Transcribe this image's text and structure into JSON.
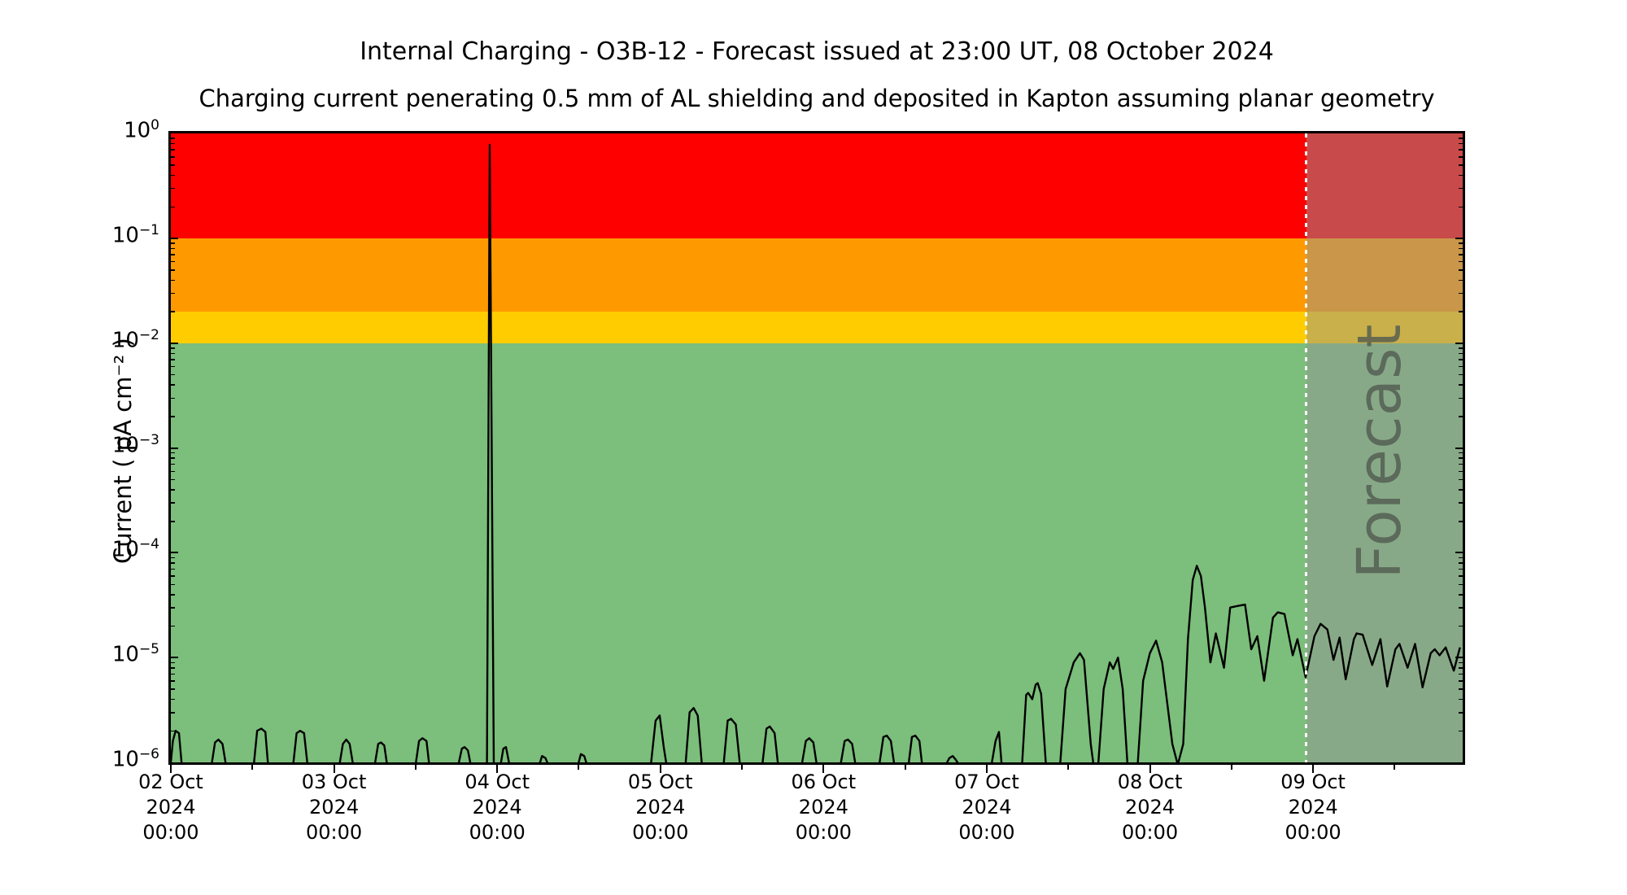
{
  "figure": {
    "title": "Internal Charging - O3B-12 - Forecast issued at 23:00 UT, 08 October 2024",
    "subtitle": "Charging current penerating 0.5 mm of AL shielding and deposited in Kapton assuming planar geometry",
    "y_axis_label": "Current ( pA cm⁻² )",
    "forecast_label": "Forecast"
  },
  "chart_data": {
    "type": "line",
    "title": "Internal Charging - O3B-12 - Forecast issued at 23:00 UT, 08 October 2024",
    "subtitle": "Charging current penerating 0.5 mm of AL shielding and deposited in Kapton assuming planar geometry",
    "xlabel": "",
    "ylabel": "Current ( pA cm⁻² )",
    "x_unit_hours_since": "02 Oct 2024 00:00 UT",
    "xlim": [
      0,
      190
    ],
    "ylim": [
      1e-06,
      1
    ],
    "y_scale": "log",
    "y_ticks": [
      {
        "base": "10",
        "exp": "0"
      },
      {
        "base": "10",
        "exp": "−1"
      },
      {
        "base": "10",
        "exp": "−2"
      },
      {
        "base": "10",
        "exp": "−3"
      },
      {
        "base": "10",
        "exp": "−4"
      },
      {
        "base": "10",
        "exp": "−5"
      },
      {
        "base": "10",
        "exp": "−6"
      }
    ],
    "x_major_ticks": [
      {
        "hours": 0,
        "label": [
          "02 Oct",
          "2024",
          "00:00"
        ]
      },
      {
        "hours": 24,
        "label": [
          "03 Oct",
          "2024",
          "00:00"
        ]
      },
      {
        "hours": 48,
        "label": [
          "04 Oct",
          "2024",
          "00:00"
        ]
      },
      {
        "hours": 72,
        "label": [
          "05 Oct",
          "2024",
          "00:00"
        ]
      },
      {
        "hours": 96,
        "label": [
          "06 Oct",
          "2024",
          "00:00"
        ]
      },
      {
        "hours": 120,
        "label": [
          "07 Oct",
          "2024",
          "00:00"
        ]
      },
      {
        "hours": 144,
        "label": [
          "08 Oct",
          "2024",
          "00:00"
        ]
      },
      {
        "hours": 168,
        "label": [
          "09 Oct",
          "2024",
          "00:00"
        ]
      }
    ],
    "bands": [
      {
        "name": "band-red",
        "from": 0.1,
        "to": 1.0,
        "color": "#ff0000"
      },
      {
        "name": "band-orange",
        "from": 0.02,
        "to": 0.1,
        "color": "#ff9900"
      },
      {
        "name": "band-yellow",
        "from": 0.01,
        "to": 0.02,
        "color": "#ffcc00"
      },
      {
        "name": "band-green",
        "from": 1e-06,
        "to": 0.01,
        "color": "#7cbe7b"
      }
    ],
    "forecast": {
      "start_hours": 167,
      "end_hours": 190,
      "label": "Forecast",
      "overlay_color": "rgba(148,148,148,0.5)",
      "divider_style": "white dotted vertical line",
      "label_color": "rgba(80,90,80,0.8)"
    },
    "series": [
      {
        "name": "charging-current",
        "color": "#000000",
        "points": [
          [
            0,
            1e-06
          ],
          [
            0.3,
            1.6e-06
          ],
          [
            0.7,
            2e-06
          ],
          [
            1.2,
            1.9e-06
          ],
          [
            1.6,
            9.5e-07
          ],
          [
            6.0,
            9.5e-07
          ],
          [
            6.5,
            1.55e-06
          ],
          [
            7.0,
            1.65e-06
          ],
          [
            7.6,
            1.5e-06
          ],
          [
            8.1,
            9.5e-07
          ],
          [
            12.2,
            9.5e-07
          ],
          [
            12.7,
            2e-06
          ],
          [
            13.3,
            2.1e-06
          ],
          [
            13.9,
            1.95e-06
          ],
          [
            14.3,
            9.5e-07
          ],
          [
            18.0,
            9.5e-07
          ],
          [
            18.5,
            1.9e-06
          ],
          [
            19.0,
            2e-06
          ],
          [
            19.6,
            1.9e-06
          ],
          [
            20.1,
            9.5e-07
          ],
          [
            24.8,
            9.5e-07
          ],
          [
            25.3,
            1.5e-06
          ],
          [
            25.8,
            1.65e-06
          ],
          [
            26.3,
            1.5e-06
          ],
          [
            26.8,
            9.5e-07
          ],
          [
            30.0,
            9.5e-07
          ],
          [
            30.5,
            1.5e-06
          ],
          [
            30.9,
            1.55e-06
          ],
          [
            31.4,
            1.45e-06
          ],
          [
            31.8,
            9.5e-07
          ],
          [
            36.0,
            9.5e-07
          ],
          [
            36.5,
            1.6e-06
          ],
          [
            37.0,
            1.7e-06
          ],
          [
            37.6,
            1.6e-06
          ],
          [
            38.0,
            9.5e-07
          ],
          [
            42.3,
            9.5e-07
          ],
          [
            42.8,
            1.35e-06
          ],
          [
            43.2,
            1.4e-06
          ],
          [
            43.7,
            1.3e-06
          ],
          [
            44.1,
            9.5e-07
          ],
          [
            46.5,
            9.5e-07
          ],
          [
            46.9,
            0.78
          ],
          [
            47.5,
            9.5e-07
          ],
          [
            48.5,
            9.5e-07
          ],
          [
            48.9,
            1.35e-06
          ],
          [
            49.3,
            1.4e-06
          ],
          [
            49.8,
            9.5e-07
          ],
          [
            54.2,
            9.5e-07
          ],
          [
            54.6,
            1.15e-06
          ],
          [
            55.1,
            1.1e-06
          ],
          [
            55.5,
            9.5e-07
          ],
          [
            59.9,
            9.5e-07
          ],
          [
            60.3,
            1.2e-06
          ],
          [
            60.8,
            1.15e-06
          ],
          [
            61.2,
            9.5e-07
          ],
          [
            70.6,
            9.5e-07
          ],
          [
            71.3,
            2.5e-06
          ],
          [
            71.9,
            2.8e-06
          ],
          [
            72.5,
            1.4e-06
          ],
          [
            72.9,
            9.5e-07
          ],
          [
            75.7,
            9.5e-07
          ],
          [
            76.3,
            3e-06
          ],
          [
            76.9,
            3.3e-06
          ],
          [
            77.5,
            2.8e-06
          ],
          [
            78.1,
            9.5e-07
          ],
          [
            81.3,
            9.5e-07
          ],
          [
            81.9,
            2.5e-06
          ],
          [
            82.4,
            2.6e-06
          ],
          [
            83.1,
            2.3e-06
          ],
          [
            83.7,
            9.5e-07
          ],
          [
            87.0,
            9.5e-07
          ],
          [
            87.6,
            2.1e-06
          ],
          [
            88.1,
            2.2e-06
          ],
          [
            88.8,
            1.9e-06
          ],
          [
            89.3,
            9.5e-07
          ],
          [
            92.8,
            9.5e-07
          ],
          [
            93.4,
            1.6e-06
          ],
          [
            93.9,
            1.7e-06
          ],
          [
            94.5,
            1.55e-06
          ],
          [
            95.0,
            9.5e-07
          ],
          [
            98.5,
            9.5e-07
          ],
          [
            99.1,
            1.6e-06
          ],
          [
            99.6,
            1.65e-06
          ],
          [
            100.2,
            1.5e-06
          ],
          [
            100.7,
            9.5e-07
          ],
          [
            104.2,
            9.5e-07
          ],
          [
            104.8,
            1.75e-06
          ],
          [
            105.3,
            1.8e-06
          ],
          [
            105.9,
            1.6e-06
          ],
          [
            106.4,
            9.5e-07
          ],
          [
            108.5,
            9.5e-07
          ],
          [
            109.0,
            1.75e-06
          ],
          [
            109.5,
            1.8e-06
          ],
          [
            110.1,
            1.6e-06
          ],
          [
            110.5,
            9.5e-07
          ],
          [
            114.0,
            9.5e-07
          ],
          [
            114.5,
            1.1e-06
          ],
          [
            115.0,
            1.15e-06
          ],
          [
            115.5,
            1.05e-06
          ],
          [
            115.9,
            9.5e-07
          ],
          [
            120.7,
            9.5e-07
          ],
          [
            121.3,
            1.6e-06
          ],
          [
            121.8,
            1.95e-06
          ],
          [
            122.2,
            9.5e-07
          ],
          [
            125.2,
            9.5e-07
          ],
          [
            125.8,
            4.4e-06
          ],
          [
            126.1,
            4.6e-06
          ],
          [
            126.7,
            4e-06
          ],
          [
            127.2,
            5.5e-06
          ],
          [
            127.5,
            5.7e-06
          ],
          [
            128.0,
            4.5e-06
          ],
          [
            128.7,
            9.5e-07
          ],
          [
            130.8,
            9.5e-07
          ],
          [
            131.6,
            5e-06
          ],
          [
            132.8,
            9e-06
          ],
          [
            133.7,
            1.1e-05
          ],
          [
            134.3,
            9.5e-06
          ],
          [
            135.3,
            1.5e-06
          ],
          [
            135.7,
            9.5e-07
          ],
          [
            136.4,
            9.5e-07
          ],
          [
            137.2,
            5e-06
          ],
          [
            138.1,
            9e-06
          ],
          [
            138.6,
            7.8e-06
          ],
          [
            139.3,
            1e-05
          ],
          [
            140.0,
            5e-06
          ],
          [
            140.7,
            9.5e-07
          ],
          [
            142.2,
            9.5e-07
          ],
          [
            143.0,
            6e-06
          ],
          [
            144.0,
            1.1e-05
          ],
          [
            144.9,
            1.45e-05
          ],
          [
            145.8,
            9e-06
          ],
          [
            147.3,
            1.5e-06
          ],
          [
            148.1,
            9.5e-07
          ],
          [
            148.9,
            1.5e-06
          ],
          [
            149.6,
            1.5e-05
          ],
          [
            150.3,
            5.5e-05
          ],
          [
            150.9,
            7.5e-05
          ],
          [
            151.5,
            6e-05
          ],
          [
            152.1,
            3e-05
          ],
          [
            152.9,
            9e-06
          ],
          [
            153.7,
            1.7e-05
          ],
          [
            154.9,
            8e-06
          ],
          [
            155.8,
            3e-05
          ],
          [
            156.8,
            3.1e-05
          ],
          [
            158.0,
            3.2e-05
          ],
          [
            158.9,
            1.2e-05
          ],
          [
            159.8,
            1.6e-05
          ],
          [
            160.8,
            6e-06
          ],
          [
            162.1,
            2.4e-05
          ],
          [
            162.8,
            2.7e-05
          ],
          [
            163.8,
            2.6e-05
          ],
          [
            165.0,
            1.05e-05
          ],
          [
            165.7,
            1.5e-05
          ],
          [
            166.9,
            6.5e-06
          ],
          [
            168.2,
            1.6e-05
          ],
          [
            169.1,
            2.1e-05
          ],
          [
            170.1,
            1.85e-05
          ],
          [
            171.0,
            9.5e-06
          ],
          [
            171.9,
            1.55e-05
          ],
          [
            172.8,
            6.2e-06
          ],
          [
            174.0,
            1.5e-05
          ],
          [
            174.4,
            1.7e-05
          ],
          [
            175.3,
            1.65e-05
          ],
          [
            176.7,
            8.5e-06
          ],
          [
            177.9,
            1.5e-05
          ],
          [
            178.9,
            5.3e-06
          ],
          [
            180.1,
            1.2e-05
          ],
          [
            180.7,
            1.35e-05
          ],
          [
            181.9,
            8e-06
          ],
          [
            183.0,
            1.35e-05
          ],
          [
            184.1,
            5.2e-06
          ],
          [
            185.3,
            1.1e-05
          ],
          [
            185.9,
            1.2e-05
          ],
          [
            186.6,
            1.05e-05
          ],
          [
            187.5,
            1.25e-05
          ],
          [
            188.7,
            7.5e-06
          ],
          [
            189.6,
            1.25e-05
          ]
        ]
      }
    ]
  }
}
